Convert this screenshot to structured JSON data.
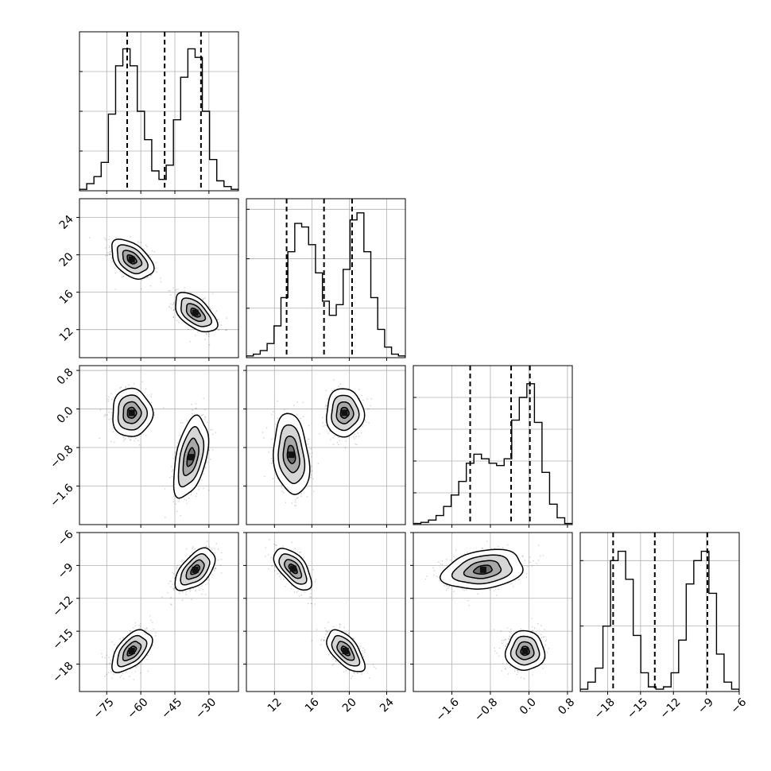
{
  "chart_data": {
    "type": "corner",
    "title": "",
    "grid": true,
    "n_parameters": 4,
    "parameters": [
      {
        "label": "",
        "range": [
          -87,
          -17
        ],
        "ticks": [
          -75,
          -60,
          -45,
          -30
        ],
        "tick_labels": [
          "−75",
          "−60",
          "−45",
          "−30"
        ],
        "quantiles": [
          -66,
          -49.5,
          -33.5
        ],
        "modes": [
          {
            "mean": -64.5,
            "sd": 4.5
          },
          {
            "mean": -34.5,
            "sd": 4.5
          }
        ],
        "histogram": [
          0.5,
          2.5,
          5,
          10,
          27,
          44,
          50,
          44,
          28,
          18,
          7,
          4,
          9,
          25,
          40,
          50,
          47,
          28,
          11,
          3.5,
          1.5,
          0.5
        ],
        "hist_max": 56
      },
      {
        "label": "",
        "range": [
          9,
          26
        ],
        "ticks": [
          12,
          16,
          20,
          24
        ],
        "tick_labels": [
          "12",
          "16",
          "20",
          "24"
        ],
        "quantiles": [
          13.3,
          17.3,
          20.3
        ],
        "modes": [
          {
            "mean": 13.9,
            "sd": 1.0
          },
          {
            "mean": 19.6,
            "sd": 1.0
          }
        ],
        "histogram": [
          0.5,
          1,
          2,
          4,
          9,
          17,
          30,
          38,
          37,
          32,
          24,
          16,
          12,
          15,
          25,
          39,
          41,
          30,
          17,
          8,
          3,
          1,
          0.5
        ],
        "hist_max": 45
      },
      {
        "label": "",
        "range": [
          -2.4,
          0.9
        ],
        "ticks": [
          -1.6,
          -0.8,
          0.0,
          0.8
        ],
        "tick_labels": [
          "−1.6",
          "−0.8",
          "0.0",
          "0.8"
        ],
        "quantiles": [
          -1.22,
          -0.37,
          0.02
        ],
        "modes": [
          {
            "mean": -1.0,
            "sd": 0.4
          },
          {
            "mean": -0.05,
            "sd": 0.2
          }
        ],
        "histogram": [
          0.5,
          1,
          2,
          4,
          8,
          13,
          19,
          27,
          31,
          29,
          27,
          26,
          29,
          46,
          56,
          62,
          45,
          23,
          9,
          3,
          0.5
        ],
        "hist_max": 70
      },
      {
        "label": "",
        "range": [
          -20.5,
          -6
        ],
        "ticks": [
          -18,
          -15,
          -12,
          -9,
          -6
        ],
        "tick_labels": [
          "−18",
          "−15",
          "−12",
          "−9",
          "−6"
        ],
        "quantiles": [
          -17.5,
          -13.7,
          -8.9
        ],
        "modes": [
          {
            "mean": -16.9,
            "sd": 0.9
          },
          {
            "mean": -9.3,
            "sd": 0.9
          }
        ],
        "histogram": [
          0.5,
          2,
          5,
          14,
          28,
          30,
          24,
          12,
          4,
          1,
          0.5,
          1,
          4,
          11,
          23,
          28,
          30,
          21,
          8,
          2,
          0.5
        ],
        "hist_max": 34
      }
    ],
    "pair_clusters": [
      {
        "row": 1,
        "col": 0,
        "clusters": [
          {
            "x": -64,
            "y": 19.5,
            "sx": 4.6,
            "sy": 1.05,
            "rho": -0.45
          },
          {
            "x": -36,
            "y": 13.8,
            "sx": 4.6,
            "sy": 1.05,
            "rho": -0.55
          }
        ]
      },
      {
        "row": 2,
        "col": 0,
        "clusters": [
          {
            "x": -64,
            "y": -0.08,
            "sx": 4.4,
            "sy": 0.25,
            "rho": 0.0
          },
          {
            "x": -38,
            "y": -1.0,
            "sx": 3.8,
            "sy": 0.42,
            "rho": 0.45
          }
        ]
      },
      {
        "row": 2,
        "col": 1,
        "clusters": [
          {
            "x": 19.5,
            "y": -0.08,
            "sx": 1.0,
            "sy": 0.25,
            "rho": 0.0
          },
          {
            "x": 13.8,
            "y": -0.95,
            "sx": 0.95,
            "sy": 0.42,
            "rho": -0.2
          }
        ]
      },
      {
        "row": 3,
        "col": 0,
        "clusters": [
          {
            "x": -64,
            "y": -16.8,
            "sx": 4.4,
            "sy": 0.95,
            "rho": 0.55
          },
          {
            "x": -36,
            "y": -9.4,
            "sx": 4.4,
            "sy": 0.95,
            "rho": 0.55
          }
        ]
      },
      {
        "row": 3,
        "col": 1,
        "clusters": [
          {
            "x": 19.6,
            "y": -16.8,
            "sx": 1.0,
            "sy": 0.95,
            "rho": -0.6
          },
          {
            "x": 14.0,
            "y": -9.3,
            "sx": 1.0,
            "sy": 0.95,
            "rho": -0.6
          }
        ]
      },
      {
        "row": 3,
        "col": 2,
        "clusters": [
          {
            "x": -0.08,
            "y": -16.8,
            "sx": 0.2,
            "sy": 0.9,
            "rho": 0.0
          },
          {
            "x": -0.95,
            "y": -9.4,
            "sx": 0.42,
            "sy": 0.9,
            "rho": 0.25
          }
        ]
      }
    ]
  }
}
